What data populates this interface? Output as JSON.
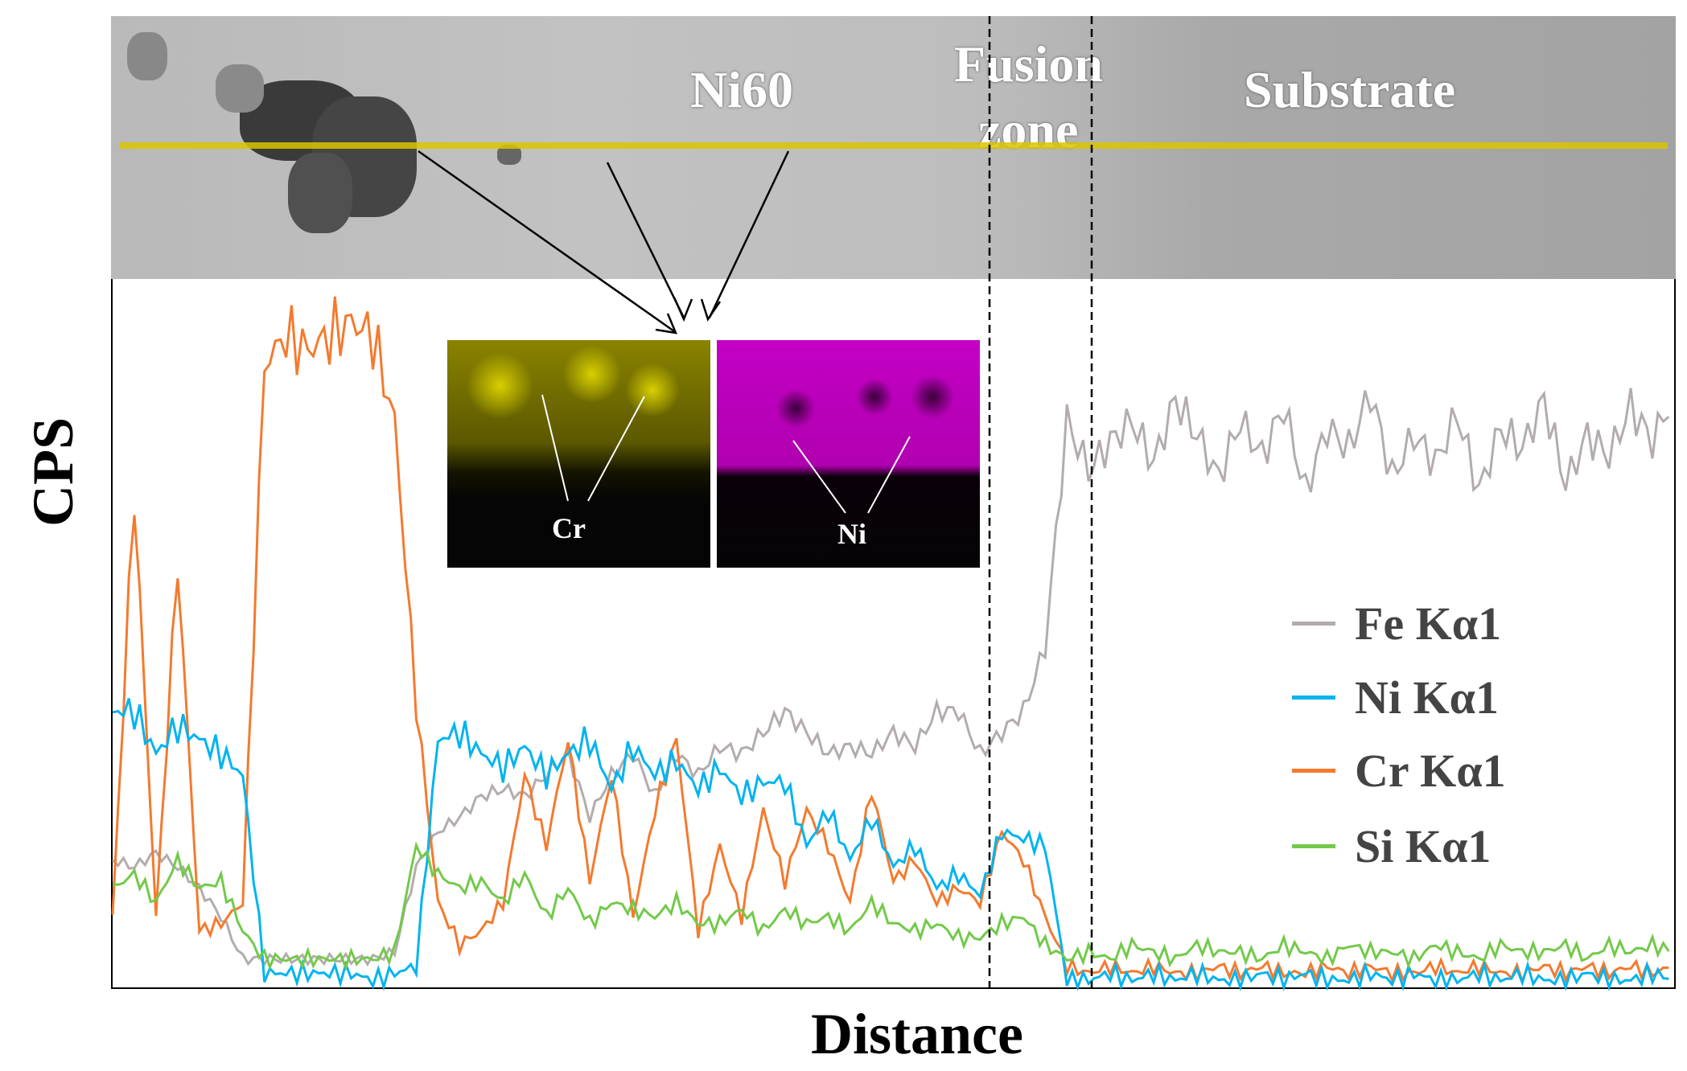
{
  "sem_image": {
    "labels": {
      "coating": "Ni60",
      "fusion_zone_line1": "Fusion",
      "fusion_zone_line2": "zone",
      "substrate": "Substrate"
    },
    "scan_line_color": "#d9c600"
  },
  "inset_maps": [
    {
      "label": "Cr",
      "color": "#e6e000"
    },
    {
      "label": "Ni",
      "color": "#e000e0"
    }
  ],
  "chart_data": {
    "type": "line",
    "xlabel": "Distance",
    "ylabel": "CPS",
    "ticks": "none",
    "legend_placement": "right",
    "boundaries": [
      "fusion zone start",
      "fusion zone end"
    ],
    "series": [
      {
        "name": "Fe Kα1",
        "color": "#b3acac",
        "values": [
          18,
          17,
          19,
          17,
          14,
          10,
          4,
          4,
          4,
          4,
          4,
          4,
          4,
          5,
          17,
          22,
          24,
          27,
          28,
          27,
          30,
          33,
          24,
          30,
          33,
          27,
          33,
          30,
          34,
          33,
          36,
          39,
          36,
          33,
          34,
          33,
          36,
          34,
          39,
          39,
          33,
          36,
          39,
          48,
          80,
          73,
          77,
          80,
          74,
          83,
          78,
          72,
          80,
          75,
          82,
          70,
          79,
          76,
          84,
          72,
          78,
          74,
          81,
          70,
          79,
          76,
          83,
          71,
          78,
          75,
          82,
          77,
          84
        ]
      },
      {
        "name": "Ni Kα1",
        "color": "#00b4ef",
        "values": [
          39,
          39,
          33,
          37,
          35,
          33,
          30,
          2,
          2,
          2,
          2,
          2,
          1,
          2,
          3,
          35,
          36,
          33,
          31,
          34,
          30,
          33,
          35,
          28,
          34,
          30,
          32,
          28,
          31,
          27,
          29,
          29,
          20,
          25,
          18,
          24,
          17,
          20,
          14,
          16,
          13,
          22,
          21,
          20,
          1,
          1,
          2,
          1,
          2,
          1,
          2,
          1,
          1,
          2,
          1,
          2,
          1,
          1,
          2,
          1,
          2,
          1,
          1,
          2,
          1,
          2,
          1,
          1,
          2,
          1,
          1,
          2,
          1
        ]
      },
      {
        "name": "Cr Kα1",
        "color": "#f47a2e",
        "values": [
          10,
          70,
          10,
          60,
          8,
          9,
          12,
          88,
          92,
          90,
          92,
          94,
          92,
          80,
          40,
          12,
          6,
          8,
          12,
          30,
          20,
          35,
          15,
          30,
          10,
          25,
          35,
          8,
          20,
          10,
          25,
          15,
          25,
          20,
          12,
          28,
          15,
          18,
          12,
          14,
          12,
          22,
          18,
          10,
          3,
          2,
          3,
          2,
          3,
          2,
          2,
          3,
          2,
          3,
          2,
          2,
          3,
          2,
          3,
          2,
          2,
          3,
          2,
          3,
          2,
          2,
          3,
          2,
          3,
          2,
          3,
          2,
          3
        ]
      },
      {
        "name": "Si Kα1",
        "color": "#73c94a",
        "values": [
          14,
          16,
          12,
          18,
          14,
          15,
          8,
          4,
          4,
          4,
          4,
          4,
          4,
          5,
          20,
          16,
          14,
          15,
          12,
          16,
          10,
          14,
          9,
          12,
          11,
          10,
          12,
          9,
          9,
          11,
          8,
          11,
          9,
          10,
          8,
          12,
          9,
          8,
          9,
          7,
          7,
          9,
          10,
          6,
          4,
          5,
          4,
          6,
          5,
          4,
          6,
          5,
          5,
          4,
          6,
          5,
          4,
          6,
          5,
          5,
          4,
          6,
          5,
          4,
          6,
          5,
          5,
          6,
          4,
          6,
          5,
          6,
          5
        ]
      }
    ]
  }
}
